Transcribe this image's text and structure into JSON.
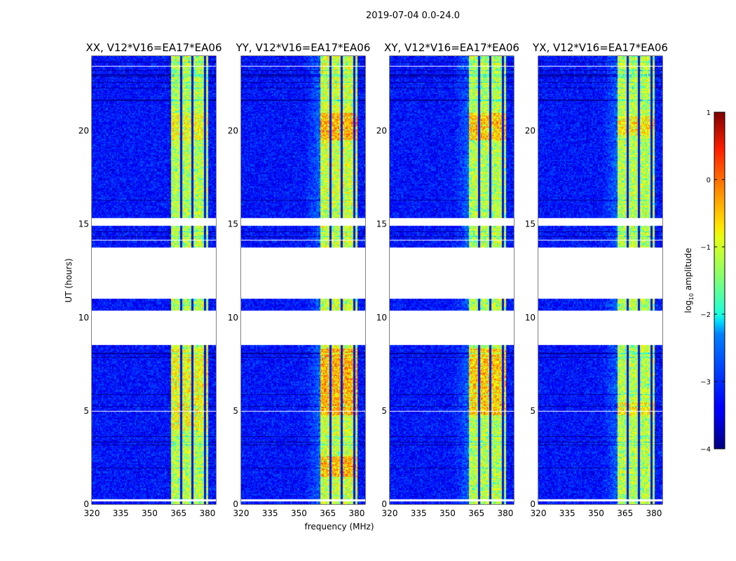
{
  "chart_data": {
    "type": "heatmap",
    "title": "2019-07-04 0.0-24.0",
    "xlabel": "frequency (MHz)",
    "ylabel": "UT (hours)",
    "xlim": [
      320,
      384.4
    ],
    "ylim": [
      0,
      24
    ],
    "xticks": [
      320,
      335,
      350,
      365,
      380
    ],
    "yticks": [
      0,
      5,
      10,
      15,
      20
    ],
    "panels": [
      {
        "title": "XX, V12*V16=EA17*EA06",
        "band_log_amp": -1.1,
        "hot_ranges": [
          [
            4.0,
            8.4
          ],
          [
            19.5,
            21.0
          ]
        ],
        "hot_log_amp": -0.8
      },
      {
        "title": "YY, V12*V16=EA17*EA06",
        "band_log_amp": -1.0,
        "hot_ranges": [
          [
            1.5,
            2.6
          ],
          [
            4.8,
            8.4
          ],
          [
            19.5,
            21.0
          ]
        ],
        "hot_log_amp": -0.4
      },
      {
        "title": "XY, V12*V16=EA17*EA06",
        "band_log_amp": -1.1,
        "hot_ranges": [
          [
            4.8,
            8.4
          ],
          [
            19.5,
            21.0
          ]
        ],
        "hot_log_amp": -0.5
      },
      {
        "title": "YX, V12*V16=EA17*EA06",
        "band_log_amp": -1.1,
        "hot_ranges": [
          [
            4.8,
            5.5
          ],
          [
            19.8,
            20.8
          ]
        ],
        "hot_log_amp": -0.7
      }
    ],
    "band_MHz": [
      360.7,
      380.4
    ],
    "background_log_amp": -3.3,
    "flagged_hour_ranges": [
      [
        8.48,
        10.36
      ],
      [
        11.03,
        13.8
      ],
      [
        14.9,
        15.35
      ]
    ],
    "colorbar": {
      "label": "log10 amplitude",
      "label_main": "log",
      "label_sub": "10",
      "label_rest": " amplitude",
      "range": [
        -4,
        1
      ],
      "ticks": [
        "1",
        "0",
        "−1",
        "−2",
        "−3",
        "−4"
      ],
      "tick_values": [
        1,
        0,
        -1,
        -2,
        -3,
        -4
      ],
      "colormap": "jet"
    }
  }
}
